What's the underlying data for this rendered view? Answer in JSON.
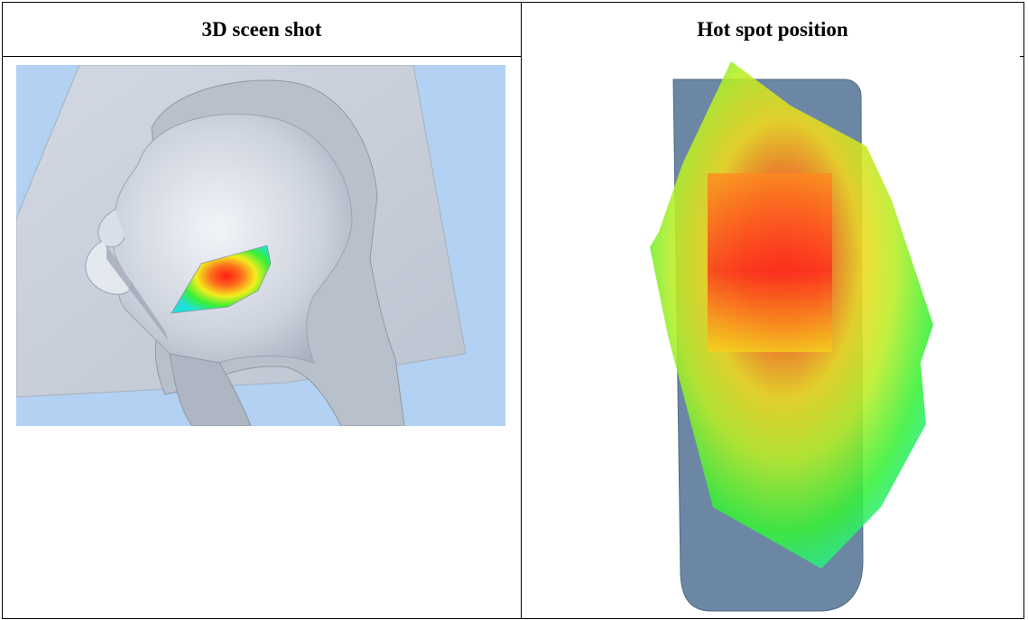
{
  "table": {
    "headers": {
      "left": "3D sceen shot",
      "right": "Hot spot position"
    }
  },
  "images": {
    "left": {
      "depicts": "3D head phantom with hot spot",
      "icon": "head-phantom-hotspot"
    },
    "right": {
      "depicts": "hot spot overlay on device",
      "icon": "device-hotspot-overlay"
    }
  },
  "colors": {
    "background_blue": "#b3d1f2",
    "phantom_gray": "#c9d0dc",
    "device_blue": "#6d8aa6",
    "hot_red": "#ff2a1a",
    "warm_yellow": "#f4f01c",
    "mid_green": "#36f03a",
    "cool_cyan": "#22e8e0"
  }
}
